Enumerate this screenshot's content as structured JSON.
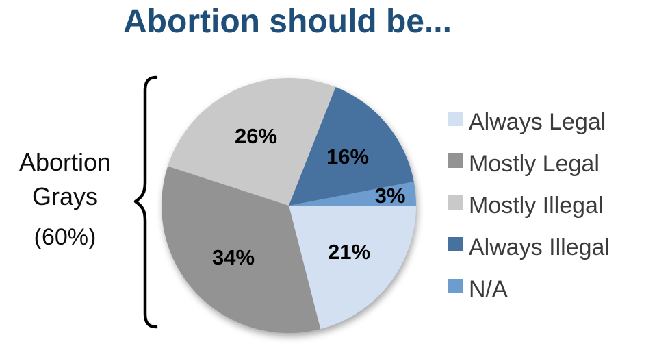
{
  "title": "Abortion should be...",
  "title_color": "#1F4E79",
  "annotation": {
    "lines": [
      "Abortion",
      "Grays"
    ],
    "percent": "(60%)"
  },
  "chart_data": {
    "type": "pie",
    "title": "Abortion should be...",
    "slices": [
      {
        "label": "Always Legal",
        "value": 21,
        "display": "21%",
        "color": "#D2E0F2"
      },
      {
        "label": "Mostly Legal",
        "value": 34,
        "display": "34%",
        "color": "#939393"
      },
      {
        "label": "Mostly Illegal",
        "value": 26,
        "display": "26%",
        "color": "#C9C9C9"
      },
      {
        "label": "Always Illegal",
        "value": 16,
        "display": "16%",
        "color": "#47729F"
      },
      {
        "label": "N/A",
        "value": 3,
        "display": "3%",
        "color": "#6D9CCF"
      }
    ],
    "start_angle_deg": 90,
    "direction": "clockwise",
    "legend_position": "right",
    "data_labels": "percent, bold black, inside slices",
    "annotation": "Abortion Grays (60%) brace groups the gray slices (34% + 26%)"
  }
}
